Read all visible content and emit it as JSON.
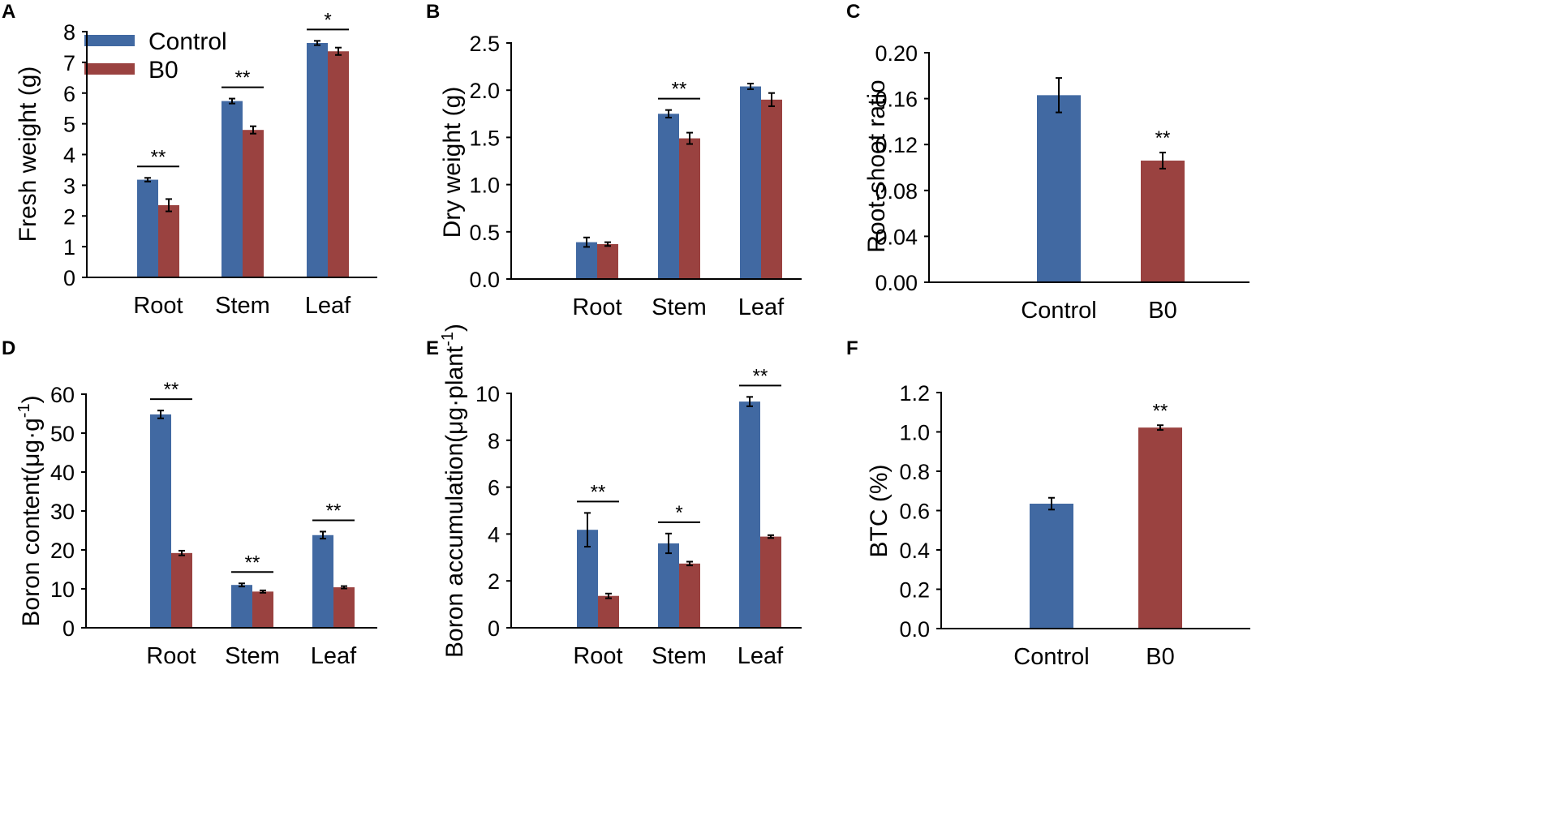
{
  "colors": {
    "control": "#4169a2",
    "b0": "#9a4240",
    "axis": "#000000"
  },
  "chart_data": [
    {
      "panel": "A",
      "type": "bar",
      "categories": [
        "Root",
        "Stem",
        "Leaf"
      ],
      "series": [
        {
          "name": "Control",
          "values": [
            3.18,
            5.74,
            7.63
          ],
          "errors": [
            0.06,
            0.08,
            0.07
          ]
        },
        {
          "name": "B0",
          "values": [
            2.35,
            4.8,
            7.36
          ],
          "errors": [
            0.2,
            0.12,
            0.12
          ]
        }
      ],
      "ylabel": "Fresh weight (g)",
      "ylim": [
        0,
        8
      ],
      "yticks": [
        "0",
        "1",
        "2",
        "3",
        "4",
        "5",
        "6",
        "7",
        "8"
      ],
      "significance": [
        {
          "category": 0,
          "label": "**",
          "line": true
        },
        {
          "category": 1,
          "label": "**",
          "line": true
        },
        {
          "category": 2,
          "label": "*",
          "line": true
        }
      ],
      "legend": {
        "position": "top-left",
        "entries": [
          "Control",
          "B0"
        ]
      }
    },
    {
      "panel": "B",
      "type": "bar",
      "categories": [
        "Root",
        "Stem",
        "Leaf"
      ],
      "series": [
        {
          "name": "Control",
          "values": [
            0.39,
            1.75,
            2.04
          ],
          "errors": [
            0.05,
            0.04,
            0.03
          ]
        },
        {
          "name": "B0",
          "values": [
            0.37,
            1.49,
            1.9
          ],
          "errors": [
            0.02,
            0.06,
            0.07
          ]
        }
      ],
      "ylabel": "Dry weight (g)",
      "ylim": [
        0,
        2.5
      ],
      "yticks": [
        "0.0",
        "0.5",
        "1.0",
        "1.5",
        "2.0",
        "2.5"
      ],
      "significance": [
        {
          "category": 1,
          "label": "**",
          "line": true
        }
      ]
    },
    {
      "panel": "C",
      "type": "bar",
      "categories": [
        "Control",
        "B0"
      ],
      "values": [
        0.163,
        0.106
      ],
      "errors": [
        0.015,
        0.007
      ],
      "bar_series": [
        "control",
        "b0"
      ],
      "ylabel": "Root-shoot ratio",
      "ylim": [
        0,
        0.2
      ],
      "yticks": [
        "0.00",
        "0.04",
        "0.08",
        "0.12",
        "0.16",
        "0.20"
      ],
      "significance": [
        {
          "category": 1,
          "label": "**",
          "line": false
        }
      ]
    },
    {
      "panel": "D",
      "type": "bar",
      "categories": [
        "Root",
        "Stem",
        "Leaf"
      ],
      "series": [
        {
          "name": "Control",
          "values": [
            54.8,
            11.0,
            23.8
          ],
          "errors": [
            1.0,
            0.4,
            0.9
          ]
        },
        {
          "name": "B0",
          "values": [
            19.2,
            9.3,
            10.4
          ],
          "errors": [
            0.6,
            0.3,
            0.3
          ]
        }
      ],
      "ylabel_main": "Boron content(μg·g",
      "ylabel_sup": "-1",
      "ylabel_end": ")",
      "ylim": [
        0,
        60
      ],
      "yticks": [
        "0",
        "10",
        "20",
        "30",
        "40",
        "50",
        "60"
      ],
      "significance": [
        {
          "category": 0,
          "label": "**",
          "line": true
        },
        {
          "category": 1,
          "label": "**",
          "line": true
        },
        {
          "category": 2,
          "label": "**",
          "line": true
        }
      ]
    },
    {
      "panel": "E",
      "type": "bar",
      "categories": [
        "Root",
        "Stem",
        "Leaf"
      ],
      "series": [
        {
          "name": "Control",
          "values": [
            4.18,
            3.6,
            9.65
          ],
          "errors": [
            0.72,
            0.42,
            0.2
          ]
        },
        {
          "name": "B0",
          "values": [
            1.36,
            2.74,
            3.89
          ],
          "errors": [
            0.1,
            0.08,
            0.06
          ]
        }
      ],
      "ylabel_main": "Boron accumulation(μg·plant",
      "ylabel_sup": "-1",
      "ylabel_end": ")",
      "ylim": [
        0,
        10
      ],
      "yticks": [
        "0",
        "2",
        "4",
        "6",
        "8",
        "10"
      ],
      "significance": [
        {
          "category": 0,
          "label": "**",
          "line": true
        },
        {
          "category": 1,
          "label": "*",
          "line": true
        },
        {
          "category": 2,
          "label": "**",
          "line": true
        }
      ]
    },
    {
      "panel": "F",
      "type": "bar",
      "categories": [
        "Control",
        "B0"
      ],
      "values": [
        0.635,
        1.022
      ],
      "errors": [
        0.03,
        0.012
      ],
      "bar_series": [
        "control",
        "b0"
      ],
      "ylabel": "BTC (%)",
      "ylim": [
        0,
        1.2
      ],
      "yticks": [
        "0.0",
        "0.2",
        "0.4",
        "0.6",
        "0.8",
        "1.0",
        "1.2"
      ],
      "significance": [
        {
          "category": 1,
          "label": "**",
          "line": false
        }
      ]
    }
  ]
}
